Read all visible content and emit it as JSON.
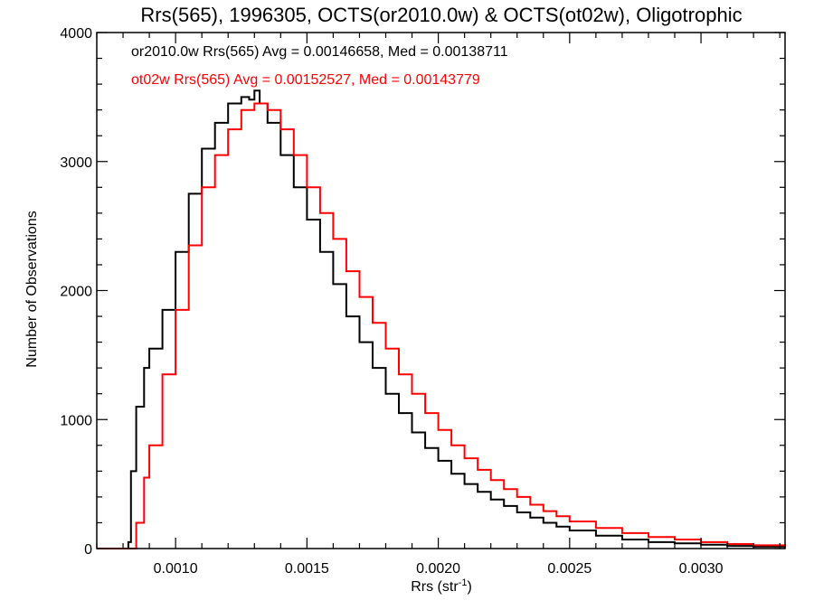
{
  "chart_data": {
    "type": "line",
    "title": "Rrs(565), 1996305, OCTS(or2010.0w) & OCTS(ot02w), Oligotrophic",
    "xlabel": "Rrs (str",
    "xlabel_sup": "-1",
    "xlabel_suffix": ")",
    "ylabel": "Number of Observations",
    "xlim": [
      0.0007,
      0.00332
    ],
    "ylim": [
      0,
      4000
    ],
    "x_ticks": [
      0.001,
      0.0015,
      0.002,
      0.0025,
      0.003
    ],
    "x_tick_labels": [
      "0.0010",
      "0.0015",
      "0.0020",
      "0.0025",
      "0.0030"
    ],
    "y_ticks": [
      0,
      1000,
      2000,
      3000,
      4000
    ],
    "y_tick_labels": [
      "0",
      "1000",
      "2000",
      "3000",
      "4000"
    ],
    "grid": false,
    "annotations": [
      {
        "text": "or2010.0w Rrs(565) Avg = 0.00146658, Med = 0.00138711",
        "color": "#000000"
      },
      {
        "text": "ot02w Rrs(565) Avg = 0.00152527, Med = 0.00143779",
        "color": "#ff0000"
      }
    ],
    "series": [
      {
        "color": "#000000",
        "x": [
          0.0007,
          0.0008,
          0.00082,
          0.00083,
          0.00085,
          0.00088,
          0.0009,
          0.00095,
          0.001,
          0.00105,
          0.0011,
          0.00115,
          0.0012,
          0.00125,
          0.00128,
          0.0013,
          0.00132,
          0.00135,
          0.0014,
          0.00145,
          0.0015,
          0.00155,
          0.0016,
          0.00165,
          0.0017,
          0.00175,
          0.0018,
          0.00185,
          0.0019,
          0.00195,
          0.002,
          0.00205,
          0.0021,
          0.00215,
          0.0022,
          0.00225,
          0.0023,
          0.00235,
          0.0024,
          0.00245,
          0.0025,
          0.0026,
          0.0027,
          0.0028,
          0.0029,
          0.003,
          0.0031,
          0.0032,
          0.00332
        ],
        "y": [
          0,
          0,
          50,
          600,
          1100,
          1400,
          1550,
          1850,
          2300,
          2750,
          3100,
          3300,
          3450,
          3500,
          3480,
          3550,
          3450,
          3300,
          3050,
          2800,
          2550,
          2300,
          2050,
          1800,
          1600,
          1400,
          1200,
          1050,
          900,
          780,
          680,
          580,
          500,
          440,
          380,
          330,
          280,
          240,
          200,
          170,
          140,
          100,
          70,
          50,
          40,
          30,
          20,
          15,
          5
        ]
      },
      {
        "color": "#ff0000",
        "x": [
          0.0007,
          0.00083,
          0.00085,
          0.00088,
          0.0009,
          0.00095,
          0.001,
          0.00105,
          0.0011,
          0.00115,
          0.0012,
          0.00125,
          0.0013,
          0.00133,
          0.00135,
          0.0014,
          0.00145,
          0.0015,
          0.00155,
          0.0016,
          0.00165,
          0.0017,
          0.00175,
          0.0018,
          0.00185,
          0.0019,
          0.00195,
          0.002,
          0.00205,
          0.0021,
          0.00215,
          0.0022,
          0.00225,
          0.0023,
          0.00235,
          0.0024,
          0.00245,
          0.0025,
          0.0026,
          0.0027,
          0.0028,
          0.0029,
          0.003,
          0.0031,
          0.0032,
          0.00332
        ],
        "y": [
          0,
          0,
          200,
          550,
          800,
          1350,
          1850,
          2350,
          2800,
          3050,
          3250,
          3400,
          3450,
          3450,
          3400,
          3250,
          3050,
          2800,
          2600,
          2400,
          2150,
          1950,
          1750,
          1550,
          1350,
          1200,
          1050,
          920,
          800,
          700,
          610,
          530,
          460,
          400,
          340,
          290,
          250,
          210,
          160,
          120,
          90,
          70,
          50,
          35,
          25,
          10
        ]
      }
    ]
  }
}
